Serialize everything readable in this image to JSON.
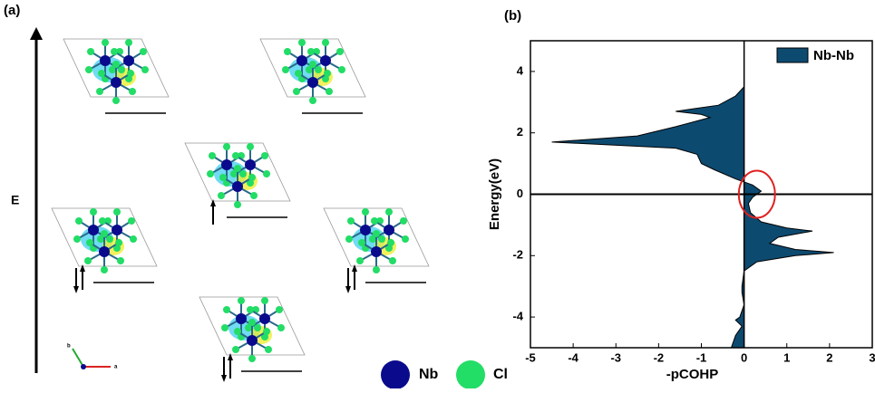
{
  "panel_a": {
    "label": "(a)",
    "axis_label": "E",
    "legend": [
      {
        "name": "Nb",
        "color": "#0a0a8c"
      },
      {
        "name": "Cl",
        "color": "#22dd66"
      }
    ],
    "axes": [
      "b",
      "a"
    ]
  },
  "chart_data": {
    "type": "area",
    "panel_label": "(b)",
    "x_label": "-pCOHP",
    "y_label": "Energy(eV)",
    "y": [
      -5,
      -4.6,
      -4.3,
      -4.1,
      -4,
      -3.6,
      -3.2,
      -3,
      -2.5,
      -2.2,
      -2.0,
      -1.9,
      -1.8,
      -1.6,
      -1.4,
      -1.2,
      -1.1,
      -0.9,
      -0.6,
      -0.3,
      -0.1,
      0,
      0.1,
      0.3,
      0.5,
      0.8,
      1.0,
      1.3,
      1.5,
      1.7,
      1.9,
      2.2,
      2.5,
      2.6,
      2.7,
      2.9,
      3.2,
      3.5,
      4.5,
      5
    ],
    "series": [
      {
        "name": "Nb-Nb",
        "color": "#0d4a70",
        "values": [
          -0.3,
          -0.2,
          -0.05,
          -0.2,
          -0.1,
          0,
          -0.05,
          -0.05,
          0,
          0.3,
          1.2,
          2.1,
          1.2,
          0.6,
          0.8,
          1.6,
          1.0,
          0.4,
          0.15,
          0.1,
          0.2,
          0.3,
          0.4,
          0.2,
          -0.2,
          -0.7,
          -1.0,
          -1.1,
          -1.6,
          -4.5,
          -2.5,
          -1.6,
          -0.8,
          -1.0,
          -1.6,
          -0.6,
          -0.2,
          0,
          0,
          0
        ]
      }
    ],
    "xlim": [
      -5,
      3
    ],
    "ylim": [
      -5,
      5
    ],
    "xticks": [
      -5,
      -4,
      -3,
      -2,
      -1,
      0,
      1,
      2,
      3
    ],
    "yticks": [
      -4,
      -2,
      0,
      2,
      4
    ],
    "legend": "upper right"
  }
}
